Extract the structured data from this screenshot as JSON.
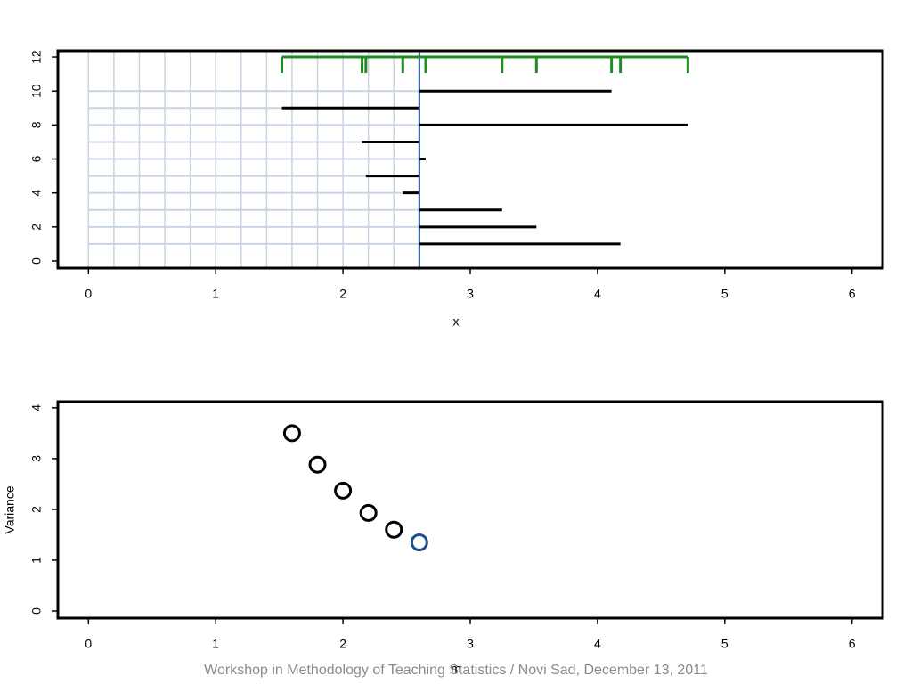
{
  "chart_data": [
    {
      "type": "deviation",
      "xlabel": "x",
      "xlim": [
        -0.24,
        6.24
      ],
      "xticks": [
        0,
        1,
        2,
        3,
        4,
        5,
        6
      ],
      "ylim": [
        -0.42,
        12.37
      ],
      "yticks": [
        0,
        2,
        4,
        6,
        8,
        10,
        12
      ],
      "y": [
        1,
        2,
        3,
        4,
        5,
        6,
        7,
        8,
        9,
        10
      ],
      "values": [
        4.18,
        3.52,
        3.25,
        2.47,
        2.18,
        2.65,
        2.15,
        4.71,
        1.52,
        4.11
      ],
      "mean": 2.6,
      "candidates": [
        0,
        0.2,
        0.4,
        0.6,
        0.8,
        1.0,
        1.2,
        1.4,
        1.6,
        1.8,
        2.0,
        2.2,
        2.4
      ],
      "color": "#000000",
      "rug_color": "#1e8c1e",
      "mean_color": "#1f4e8c",
      "grid_color": "#c8d4e4"
    },
    {
      "type": "scatter",
      "xlabel": "m",
      "ylabel": "Variance",
      "xlim": [
        -0.24,
        6.24
      ],
      "xticks": [
        0,
        1,
        2,
        3,
        4,
        5,
        6
      ],
      "ylim": [
        -0.14,
        4.12
      ],
      "yticks": [
        0,
        1,
        2,
        3,
        4
      ],
      "series": [
        {
          "color": "#000000",
          "x": [
            1.6,
            1.8,
            2.0,
            2.2,
            2.4
          ],
          "values": [
            3.5,
            2.88,
            2.37,
            1.93,
            1.6
          ]
        },
        {
          "color": "#1f4e8c",
          "x": [
            2.6
          ],
          "values": [
            1.35
          ]
        }
      ]
    }
  ],
  "footer": "Workshop in Methodology of Teaching Statistics / Novi Sad, December 13, 2011"
}
